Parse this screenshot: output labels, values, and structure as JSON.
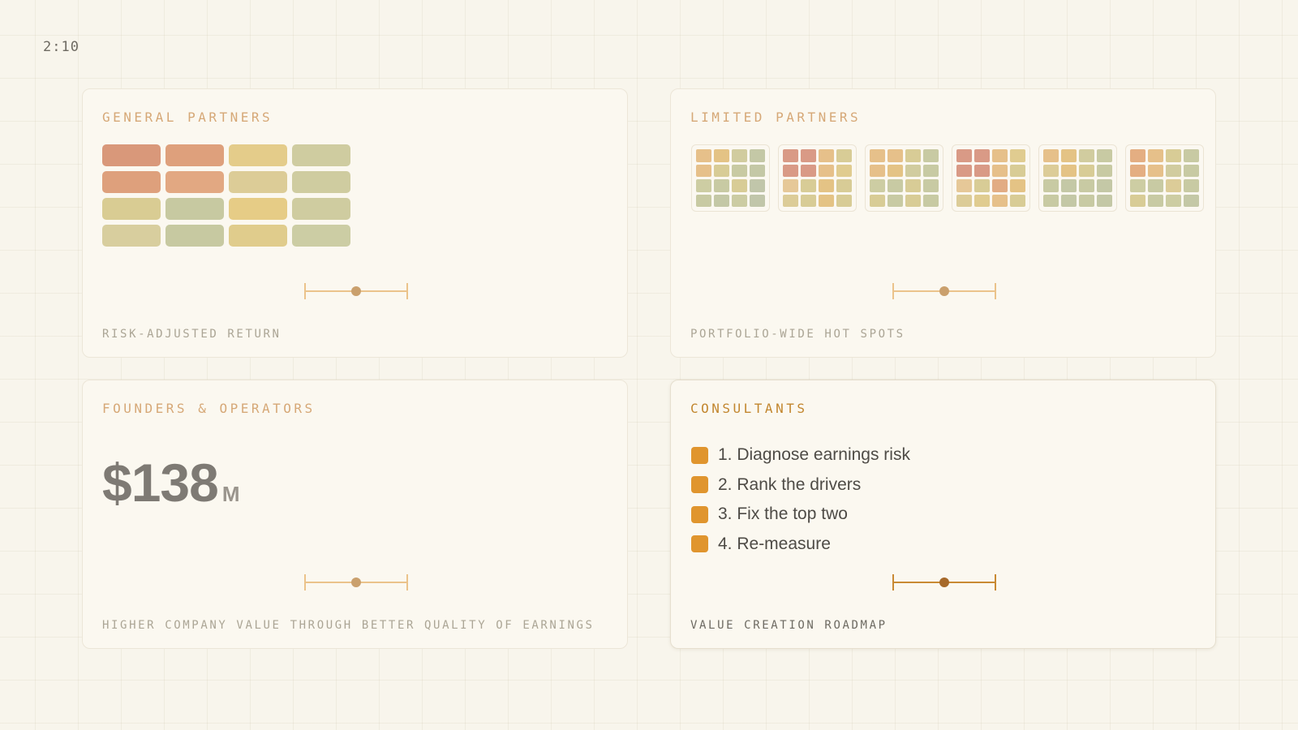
{
  "timer": "2:10",
  "cards": {
    "general_partners": {
      "title": "GENERAL PARTNERS",
      "caption": "RISK-ADJUSTED RETURN",
      "heatmap": [
        [
          "#d9987a",
          "#dea07c",
          "#e4cc8a",
          "#cfcca0"
        ],
        [
          "#dea07c",
          "#e2a882",
          "#dccc97",
          "#cfcca0"
        ],
        [
          "#d9cc93",
          "#c7c9a1",
          "#e6cc86",
          "#cfcca0"
        ],
        [
          "#d8ce9e",
          "#c7c9a1",
          "#e0cc8c",
          "#cccda4"
        ]
      ],
      "slider_position": 0.5
    },
    "limited_partners": {
      "title": "LIMITED PARTNERS",
      "caption": "PORTFOLIO-WIDE HOT SPOTS",
      "mini_heatmaps": [
        [
          [
            "#e6c08a",
            "#e4c385",
            "#d1cc9f",
            "#c4c8a6"
          ],
          [
            "#e6c08a",
            "#d8cc96",
            "#c8caa3",
            "#c4c8a6"
          ],
          [
            "#cdcda3",
            "#c8caa3",
            "#d8cc96",
            "#c1c6aa"
          ],
          [
            "#c8caa3",
            "#c4c8a6",
            "#cccca3",
            "#c1c6aa"
          ]
        ],
        [
          [
            "#d99a86",
            "#d99a86",
            "#e6c08a",
            "#d8cc96"
          ],
          [
            "#d99a86",
            "#d99a86",
            "#e6c08a",
            "#e0cc90"
          ],
          [
            "#e6c898",
            "#d8cc96",
            "#e4c385",
            "#d8cc96"
          ],
          [
            "#dccc98",
            "#d8cc96",
            "#e4c385",
            "#d8cc96"
          ]
        ],
        [
          [
            "#e6c08a",
            "#e6c08a",
            "#d8cc96",
            "#c8caa3"
          ],
          [
            "#e6c08a",
            "#e4c385",
            "#d1cc9f",
            "#c8caa3"
          ],
          [
            "#cdcda3",
            "#c8caa3",
            "#d8cc96",
            "#c8caa3"
          ],
          [
            "#d8cc96",
            "#c8caa3",
            "#d8cc96",
            "#c8caa3"
          ]
        ],
        [
          [
            "#d99a86",
            "#d99a86",
            "#e6c08a",
            "#e0cc90"
          ],
          [
            "#d99a86",
            "#d99a86",
            "#e6c08a",
            "#d8cc96"
          ],
          [
            "#e6c898",
            "#d8cc96",
            "#e2ac84",
            "#e4c385"
          ],
          [
            "#dccc98",
            "#e0cc90",
            "#e6c08a",
            "#d8cc96"
          ]
        ],
        [
          [
            "#e6c08a",
            "#e4c385",
            "#d1cc9f",
            "#c8caa3"
          ],
          [
            "#dccc98",
            "#e4c385",
            "#d8cc96",
            "#c8caa3"
          ],
          [
            "#c8caa3",
            "#c4c8a6",
            "#c8caa3",
            "#c4c8a6"
          ],
          [
            "#c8caa3",
            "#c4c8a6",
            "#c8caa3",
            "#c4c8a6"
          ]
        ],
        [
          [
            "#e4ae82",
            "#e6c08a",
            "#d8cc96",
            "#c8caa3"
          ],
          [
            "#e4ae82",
            "#e6c08a",
            "#d1cc9f",
            "#c8caa3"
          ],
          [
            "#cdcda3",
            "#c8caa3",
            "#dccc98",
            "#c8caa3"
          ],
          [
            "#d8cc96",
            "#c8caa3",
            "#cdcda3",
            "#c4c8a6"
          ]
        ]
      ],
      "slider_position": 0.5
    },
    "founders_operators": {
      "title": "FOUNDERS & OPERATORS",
      "caption": "HIGHER COMPANY VALUE THROUGH BETTER QUALITY OF EARNINGS",
      "value": "$138",
      "unit": "M",
      "slider_position": 0.5
    },
    "consultants": {
      "title": "CONSULTANTS",
      "caption": "VALUE CREATION ROADMAP",
      "steps": [
        "1. Diagnose earnings risk",
        "2. Rank the drivers",
        "3. Fix the top two",
        "4. Re-measure"
      ],
      "slider_position": 0.5
    }
  },
  "colors": {
    "background": "#f8f5ec",
    "card": "#fbf8f0",
    "accent": "#e0952e",
    "title_muted": "#d6a877",
    "title_active": "#c2862e"
  }
}
